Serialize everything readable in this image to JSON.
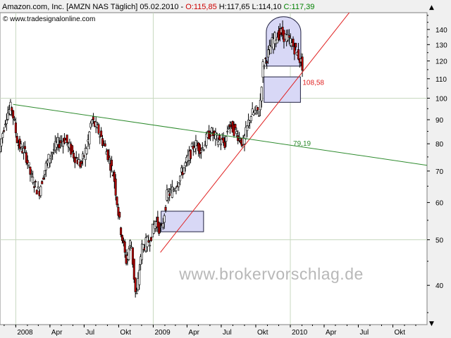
{
  "header": {
    "instrument": "Amazon.com, Inc. [AMZN NAS  Täglich] 05.02.2010 - ",
    "open_label": "O:115,85",
    "high_label": "H:117,65",
    "low_label": "L:114,10",
    "close_label": "C:117,39",
    "source": "© www.tradesignalonline.com",
    "up_arrow": "▲",
    "down_arrow": "▼"
  },
  "watermark": "www.brokervorschlag.de",
  "chart_data": {
    "type": "candlestick",
    "scale": "log",
    "ylim": [
      33,
      152
    ],
    "y_ticks": [
      40,
      50,
      60,
      70,
      80,
      90,
      100,
      110,
      120,
      130,
      140
    ],
    "x_tick_labels": [
      "2008",
      "Apr",
      "Jul",
      "Okt",
      "2009",
      "Apr",
      "Jul",
      "Okt",
      "2010",
      "Apr",
      "Jul",
      "Okt"
    ],
    "x_tick_dates": [
      "2008-01",
      "2008-04",
      "2008-07",
      "2008-10",
      "2009-01",
      "2009-04",
      "2009-07",
      "2009-10",
      "2010-01",
      "2010-04",
      "2010-07",
      "2010-10"
    ],
    "xlim": [
      "2007-11-20",
      "2010-12-31"
    ],
    "price_path": [
      [
        "2007-11-20",
        77
      ],
      [
        "2007-12-10",
        92
      ],
      [
        "2007-12-24",
        96
      ],
      [
        "2008-01-10",
        80
      ],
      [
        "2008-01-31",
        76
      ],
      [
        "2008-02-14",
        68
      ],
      [
        "2008-03-06",
        63
      ],
      [
        "2008-03-20",
        70
      ],
      [
        "2008-04-03",
        75
      ],
      [
        "2008-04-24",
        80
      ],
      [
        "2008-05-14",
        82
      ],
      [
        "2008-06-05",
        76
      ],
      [
        "2008-06-26",
        72
      ],
      [
        "2008-07-14",
        80
      ],
      [
        "2008-07-24",
        90
      ],
      [
        "2008-08-12",
        85
      ],
      [
        "2008-09-05",
        76
      ],
      [
        "2008-09-22",
        68
      ],
      [
        "2008-10-06",
        55
      ],
      [
        "2008-10-24",
        45
      ],
      [
        "2008-11-06",
        50
      ],
      [
        "2008-11-20",
        37
      ],
      [
        "2008-12-04",
        48
      ],
      [
        "2008-12-26",
        50
      ],
      [
        "2009-01-10",
        55
      ],
      [
        "2009-01-26",
        52
      ],
      [
        "2009-02-10",
        62
      ],
      [
        "2009-02-27",
        64
      ],
      [
        "2009-03-16",
        68
      ],
      [
        "2009-04-06",
        74
      ],
      [
        "2009-04-24",
        80
      ],
      [
        "2009-05-14",
        78
      ],
      [
        "2009-06-05",
        85
      ],
      [
        "2009-06-22",
        82
      ],
      [
        "2009-07-14",
        80
      ],
      [
        "2009-07-24",
        88
      ],
      [
        "2009-08-12",
        85
      ],
      [
        "2009-09-01",
        80
      ],
      [
        "2009-09-20",
        92
      ],
      [
        "2009-10-08",
        94
      ],
      [
        "2009-10-14",
        93
      ],
      [
        "2009-10-23",
        117
      ],
      [
        "2009-11-06",
        124
      ],
      [
        "2009-11-20",
        133
      ],
      [
        "2009-12-01",
        136
      ],
      [
        "2009-12-10",
        138
      ],
      [
        "2009-12-21",
        135
      ],
      [
        "2010-01-05",
        132
      ],
      [
        "2010-01-15",
        128
      ],
      [
        "2010-01-28",
        122
      ],
      [
        "2010-02-05",
        117.39
      ]
    ],
    "annotations": {
      "uptrend_line": {
        "from": [
          "2009-01-20",
          47
        ],
        "to": [
          "2010-07-12",
          165
        ],
        "color": "#e02020"
      },
      "downtrend_line": {
        "from": [
          "2007-12-25",
          97
        ],
        "to": [
          "2010-12-31",
          72
        ],
        "color": "#2e8b2e"
      },
      "box_lower": {
        "from": [
          "2009-01-22",
          52
        ],
        "to": [
          "2009-05-15",
          57.5
        ]
      },
      "box_upper": {
        "from": [
          "2009-10-23",
          98
        ],
        "to": [
          "2010-01-28",
          111
        ]
      },
      "ellipse_top": {
        "center": [
          "2009-12-14",
          127
        ],
        "x_halfwidth_days": 46,
        "y_range": [
          117,
          149
        ]
      },
      "label_red": {
        "text": "108,58",
        "anchor": [
          "2010-01-28",
          106.8
        ],
        "color": "#e02020"
      },
      "label_green": {
        "text": "79,19",
        "anchor": [
          "2010-01-03",
          79.19
        ],
        "color": "#2e8b2e"
      }
    }
  }
}
